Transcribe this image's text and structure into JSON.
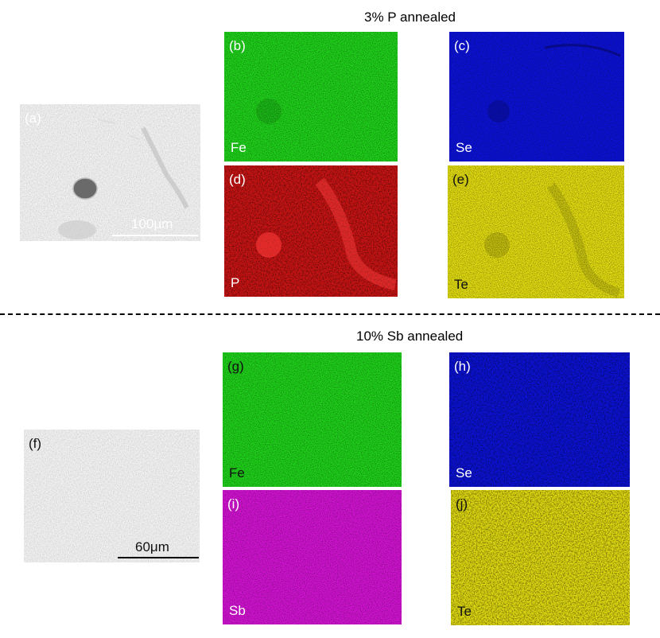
{
  "top": {
    "title": "3% P annealed",
    "sem": {
      "label": "(a)",
      "scale_label": "100μm"
    },
    "maps": [
      {
        "label": "(b)",
        "element": "Fe",
        "color": "#1fd21a"
      },
      {
        "label": "(c)",
        "element": "Se",
        "color": "#0c12d8"
      },
      {
        "label": "(d)",
        "element": "P",
        "color": "#cc1414"
      },
      {
        "label": "(e)",
        "element": "Te",
        "color": "#e2dc10"
      }
    ]
  },
  "bottom": {
    "title": "10% Sb annealed",
    "sem": {
      "label": "(f)",
      "scale_label": "60μm"
    },
    "maps": [
      {
        "label": "(g)",
        "element": "Fe",
        "color": "#1fd21a"
      },
      {
        "label": "(h)",
        "element": "Se",
        "color": "#0c12d8"
      },
      {
        "label": "(i)",
        "element": "Sb",
        "color": "#d313d3"
      },
      {
        "label": "(j)",
        "element": "Te",
        "color": "#e2dc10"
      }
    ]
  }
}
